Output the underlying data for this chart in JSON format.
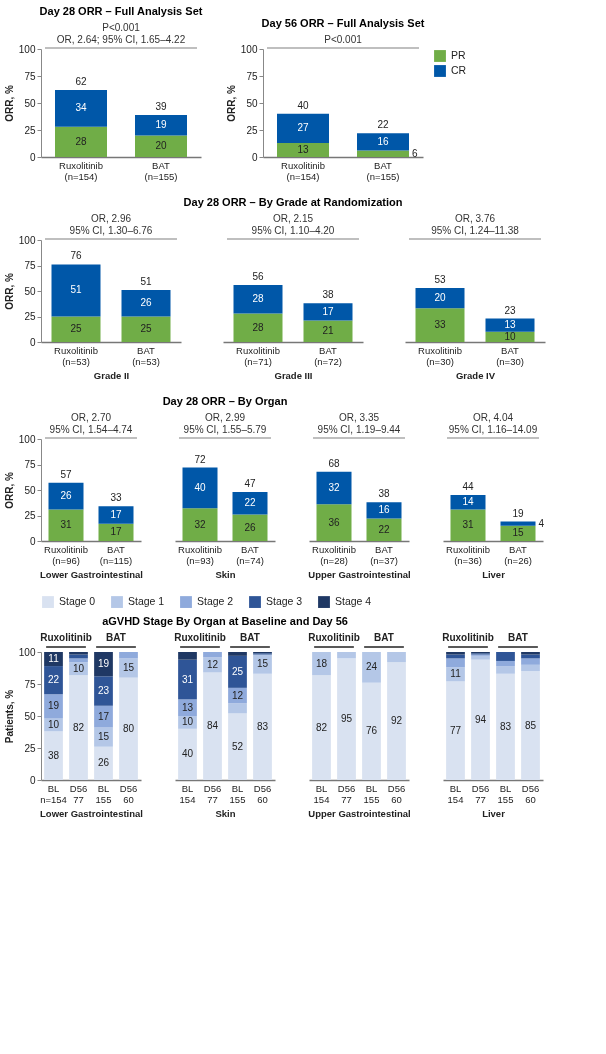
{
  "chart_data": [
    {
      "type": "bar",
      "title": "Day 28 ORR – Full Analysis Set",
      "ylabel": "ORR, %",
      "categories": [
        "Ruxolitinib\n(n=154)",
        "BAT\n(n=155)"
      ],
      "stacked": true,
      "data_labels": true,
      "totals": [
        "62",
        "39"
      ],
      "annotations": [
        "P<0.001",
        "OR, 2.64; 95% CI, 1.65–4.22"
      ],
      "ylim": [
        0,
        100
      ],
      "yticks": [
        0,
        25,
        50,
        75,
        100
      ],
      "legend": "right",
      "series": [
        {
          "name": "PR",
          "color": "#70ad47",
          "values": [
            28,
            20
          ]
        },
        {
          "name": "CR",
          "color": "#0057a8",
          "values": [
            34,
            19
          ]
        }
      ]
    },
    {
      "type": "bar",
      "title": "Day 56 ORR – Full Analysis Set",
      "ylabel": "ORR, %",
      "categories": [
        "Ruxolitinib\n(n=154)",
        "BAT\n(n=155)"
      ],
      "stacked": true,
      "data_labels": true,
      "totals": [
        "40",
        "22"
      ],
      "annotations": [
        "P<0.001"
      ],
      "ylim": [
        0,
        100
      ],
      "yticks": [
        0,
        25,
        50,
        75,
        100
      ],
      "series": [
        {
          "name": "PR",
          "color": "#70ad47",
          "values": [
            13,
            6
          ]
        },
        {
          "name": "CR",
          "color": "#0057a8",
          "values": [
            27,
            16
          ]
        }
      ]
    },
    {
      "type": "bar",
      "ylabel": "ORR, %",
      "xlabel": "Grade II",
      "categories": [
        "Ruxolitinib\n(n=53)",
        "BAT\n(n=53)"
      ],
      "stacked": true,
      "data_labels": true,
      "totals": [
        "76",
        "51"
      ],
      "annotations": [
        "OR, 2.96",
        "95% CI, 1.30–6.76"
      ],
      "ylim": [
        0,
        100
      ],
      "yticks": [
        0,
        25,
        50,
        75,
        100
      ],
      "series": [
        {
          "name": "PR",
          "color": "#70ad47",
          "values": [
            25,
            25
          ]
        },
        {
          "name": "CR",
          "color": "#0057a8",
          "values": [
            51,
            26
          ]
        }
      ]
    },
    {
      "type": "bar",
      "title": "Day 28 ORR – By Grade at Randomization",
      "xlabel": "Grade III",
      "categories": [
        "Ruxolitinib\n(n=71)",
        "BAT\n(n=72)"
      ],
      "stacked": true,
      "data_labels": true,
      "totals": [
        "56",
        "38"
      ],
      "annotations": [
        "OR, 2.15",
        "95% CI, 1.10–4.20"
      ],
      "ylim": [
        0,
        100
      ],
      "tick_labels": "x",
      "series": [
        {
          "name": "PR",
          "color": "#70ad47",
          "values": [
            28,
            21
          ]
        },
        {
          "name": "CR",
          "color": "#0057a8",
          "values": [
            28,
            17
          ]
        }
      ]
    },
    {
      "type": "bar",
      "xlabel": "Grade IV",
      "categories": [
        "Ruxolitinib\n(n=30)",
        "BAT\n(n=30)"
      ],
      "stacked": true,
      "data_labels": true,
      "totals": [
        "53",
        "23"
      ],
      "annotations": [
        "OR, 3.76",
        "95% CI, 1.24–11.38"
      ],
      "ylim": [
        0,
        100
      ],
      "tick_labels": "x",
      "series": [
        {
          "name": "PR",
          "color": "#70ad47",
          "values": [
            33,
            10
          ]
        },
        {
          "name": "CR",
          "color": "#0057a8",
          "values": [
            20,
            13
          ]
        }
      ]
    },
    {
      "type": "bar",
      "ylabel": "ORR, %",
      "xlabel": "Lower Gastrointestinal",
      "categories": [
        "Ruxolitinib\n(n=96)",
        "BAT\n(n=115)"
      ],
      "stacked": true,
      "data_labels": true,
      "totals": [
        "57",
        "33"
      ],
      "annotations": [
        "OR, 2.70",
        "95% CI, 1.54–4.74"
      ],
      "ylim": [
        0,
        100
      ],
      "yticks": [
        0,
        25,
        50,
        75,
        100
      ],
      "series": [
        {
          "name": "PR",
          "color": "#70ad47",
          "values": [
            31,
            17
          ]
        },
        {
          "name": "CR",
          "color": "#0057a8",
          "values": [
            26,
            17
          ]
        }
      ]
    },
    {
      "type": "bar",
      "title": "Day 28 ORR – By Organ",
      "xlabel": "Skin",
      "categories": [
        "Ruxolitinib\n(n=93)",
        "BAT\n(n=74)"
      ],
      "stacked": true,
      "data_labels": true,
      "totals": [
        "72",
        "47"
      ],
      "annotations": [
        "OR, 2.99",
        "95% CI, 1.55–5.79"
      ],
      "ylim": [
        0,
        100
      ],
      "tick_labels": "x",
      "series": [
        {
          "name": "PR",
          "color": "#70ad47",
          "values": [
            32,
            26
          ]
        },
        {
          "name": "CR",
          "color": "#0057a8",
          "values": [
            40,
            22
          ]
        }
      ]
    },
    {
      "type": "bar",
      "xlabel": "Upper Gastrointestinal",
      "categories": [
        "Ruxolitinib\n(n=28)",
        "BAT\n(n=37)"
      ],
      "stacked": true,
      "data_labels": true,
      "totals": [
        "68",
        "38"
      ],
      "annotations": [
        "OR, 3.35",
        "95% CI, 1.19–9.44"
      ],
      "ylim": [
        0,
        100
      ],
      "tick_labels": "x",
      "series": [
        {
          "name": "PR",
          "color": "#70ad47",
          "values": [
            36,
            22
          ]
        },
        {
          "name": "CR",
          "color": "#0057a8",
          "values": [
            32,
            16
          ]
        }
      ]
    },
    {
      "type": "bar",
      "xlabel": "Liver",
      "categories": [
        "Ruxolitinib\n(n=36)",
        "BAT\n(n=26)"
      ],
      "stacked": true,
      "data_labels": true,
      "totals": [
        "44",
        "19"
      ],
      "annotations": [
        "OR, 4.04",
        "95% CI, 1.16–14.09"
      ],
      "ylim": [
        0,
        100
      ],
      "tick_labels": "x",
      "series": [
        {
          "name": "PR",
          "color": "#70ad47",
          "values": [
            31,
            15
          ]
        },
        {
          "name": "CR",
          "color": "#0057a8",
          "values": [
            14,
            4
          ]
        }
      ]
    },
    {
      "type": "bar",
      "ylabel": "Patients, %",
      "legend": "top",
      "xlabel": "Lower Gastrointestinal",
      "categories": [
        "BL\nn=154",
        "D56\n77",
        "BL\n155",
        "D56\n60"
      ],
      "stacked": true,
      "annotations": [
        "Ruxolitinib",
        "BAT"
      ],
      "ylim": [
        0,
        100
      ],
      "yticks": [
        0,
        25,
        50,
        75,
        100
      ],
      "series": [
        {
          "name": "Stage 0",
          "color": "#d9e2f1",
          "values": [
            38,
            82,
            26,
            80
          ],
          "value_labels": [
            "38",
            "82",
            "26",
            "80"
          ]
        },
        {
          "name": "Stage 1",
          "color": "#b4c7e7",
          "values": [
            10,
            10,
            15,
            15
          ],
          "value_labels": [
            "10",
            "10",
            "15",
            "15"
          ]
        },
        {
          "name": "Stage 2",
          "color": "#8faadc",
          "values": [
            19,
            3,
            17,
            5
          ],
          "value_labels": [
            "19",
            null,
            "17",
            null
          ]
        },
        {
          "name": "Stage 3",
          "color": "#2f5597",
          "values": [
            22,
            3,
            23,
            0
          ],
          "value_labels": [
            "22",
            null,
            "23",
            null
          ]
        },
        {
          "name": "Stage 4",
          "color": "#1f3864",
          "values": [
            11,
            2,
            19,
            0
          ],
          "value_labels": [
            "11",
            null,
            "19",
            null
          ]
        }
      ]
    },
    {
      "type": "bar",
      "title": "aGVHD Stage By Organ at Baseline and Day 56",
      "xlabel": "Skin",
      "categories": [
        "BL\n154",
        "D56\n77",
        "BL\n155",
        "D56\n60"
      ],
      "stacked": true,
      "annotations": [
        "Ruxolitinib",
        "BAT"
      ],
      "ylim": [
        0,
        100
      ],
      "tick_labels": "x",
      "series": [
        {
          "name": "Stage 0",
          "color": "#d9e2f1",
          "values": [
            40,
            84,
            52,
            83
          ],
          "value_labels": [
            "40",
            "84",
            "52",
            "83"
          ]
        },
        {
          "name": "Stage 1",
          "color": "#b4c7e7",
          "values": [
            10,
            12,
            8,
            15
          ],
          "value_labels": [
            "10",
            "12",
            null,
            "15"
          ]
        },
        {
          "name": "Stage 2",
          "color": "#8faadc",
          "values": [
            13,
            4,
            12,
            0
          ],
          "value_labels": [
            "13",
            null,
            "12",
            null
          ]
        },
        {
          "name": "Stage 3",
          "color": "#2f5597",
          "values": [
            31,
            0,
            25,
            1
          ],
          "value_labels": [
            "31",
            null,
            "25",
            null
          ]
        },
        {
          "name": "Stage 4",
          "color": "#1f3864",
          "values": [
            6,
            0,
            3,
            1
          ]
        }
      ]
    },
    {
      "type": "bar",
      "xlabel": "Upper Gastrointestinal",
      "categories": [
        "BL\n154",
        "D56\n77",
        "BL\n155",
        "D56\n60"
      ],
      "stacked": true,
      "annotations": [
        "Ruxolitinib",
        "BAT"
      ],
      "ylim": [
        0,
        100
      ],
      "tick_labels": "x",
      "series": [
        {
          "name": "Stage 0",
          "color": "#d9e2f1",
          "values": [
            82,
            95,
            76,
            92
          ],
          "value_labels": [
            "82",
            "95",
            "76",
            "92"
          ]
        },
        {
          "name": "Stage 1",
          "color": "#b4c7e7",
          "values": [
            18,
            5,
            24,
            8
          ],
          "value_labels": [
            "18",
            null,
            "24",
            null
          ]
        }
      ]
    },
    {
      "type": "bar",
      "xlabel": "Liver",
      "categories": [
        "BL\n154",
        "D56\n77",
        "BL\n155",
        "D56\n60"
      ],
      "stacked": true,
      "annotations": [
        "Ruxolitinib",
        "BAT"
      ],
      "ylim": [
        0,
        100
      ],
      "tick_labels": "x",
      "series": [
        {
          "name": "Stage 0",
          "color": "#d9e2f1",
          "values": [
            77,
            94,
            83,
            85
          ],
          "value_labels": [
            "77",
            "94",
            "83",
            "85"
          ]
        },
        {
          "name": "Stage 1",
          "color": "#b4c7e7",
          "values": [
            11,
            3,
            6,
            5
          ],
          "value_labels": [
            "11",
            null,
            null,
            null
          ]
        },
        {
          "name": "Stage 2",
          "color": "#8faadc",
          "values": [
            7,
            1,
            4,
            5
          ]
        },
        {
          "name": "Stage 3",
          "color": "#2f5597",
          "values": [
            3,
            1,
            7,
            3
          ]
        },
        {
          "name": "Stage 4",
          "color": "#1f3864",
          "values": [
            2,
            1,
            0,
            2
          ]
        }
      ]
    }
  ]
}
